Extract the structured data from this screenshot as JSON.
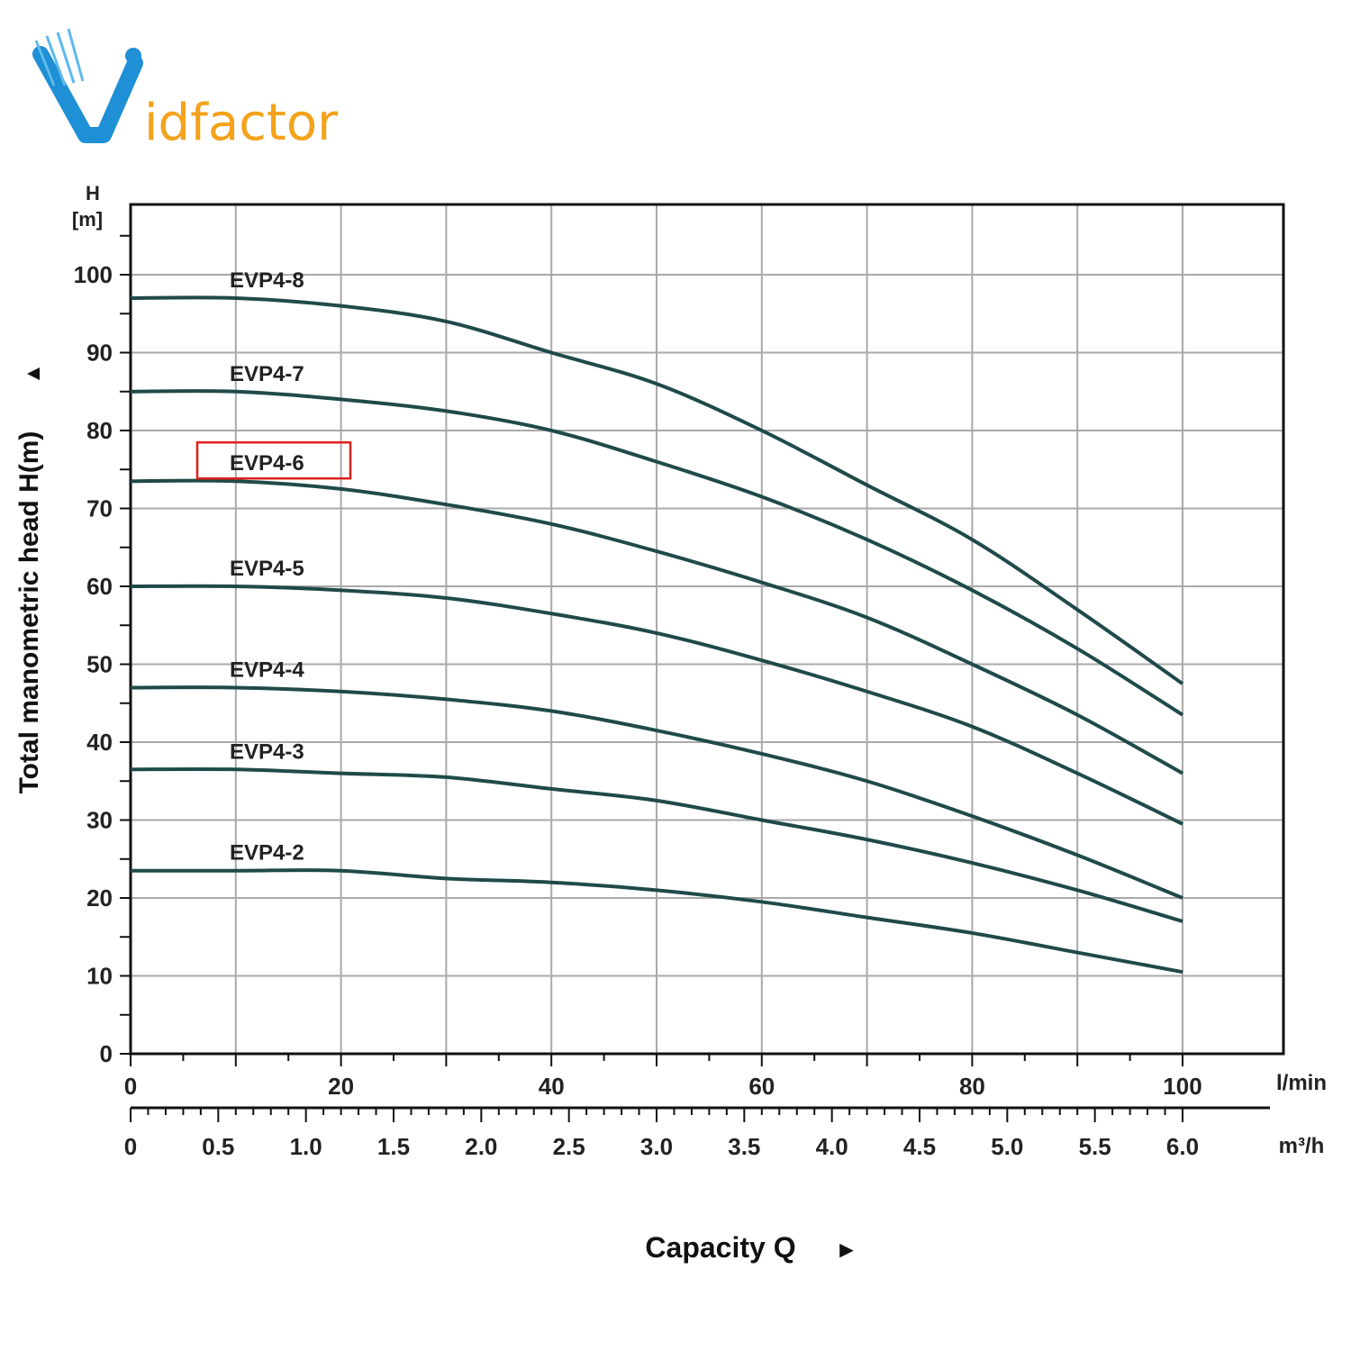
{
  "logo": {
    "initial": "V",
    "rest": "idfactor",
    "colors": {
      "blue": "#1f8fd6",
      "orange": "#f3a21b"
    }
  },
  "chart_data": {
    "type": "line",
    "ylabel": "Total manometric head H(m)",
    "ylabel_arrow": "▲",
    "y_unit_label": [
      "H",
      "[m]"
    ],
    "xlabel": "Capacity Q",
    "xlabel_arrow": "►",
    "x_unit_primary": "l/min",
    "x_unit_secondary": "m³/h",
    "xlim": [
      0,
      100
    ],
    "ylim": [
      0,
      100
    ],
    "grid": true,
    "y_ticks": [
      "0",
      "10",
      "20",
      "30",
      "40",
      "50",
      "60",
      "70",
      "80",
      "90",
      "100"
    ],
    "x_ticks_lmin": [
      "0",
      "20",
      "40",
      "60",
      "80",
      "100"
    ],
    "x_ticks_m3h": [
      "0",
      "0.5",
      "1.0",
      "1.5",
      "2.0",
      "2.5",
      "3.0",
      "3.5",
      "4.0",
      "4.5",
      "5.0",
      "5.5",
      "6.0"
    ],
    "x": [
      0,
      10,
      20,
      30,
      40,
      50,
      60,
      70,
      80,
      90,
      100
    ],
    "series": [
      {
        "name": "EVP4-8",
        "values": [
          97,
          97,
          96,
          94,
          90,
          86,
          80,
          73,
          66,
          57,
          47.5
        ]
      },
      {
        "name": "EVP4-7",
        "values": [
          85,
          85,
          84,
          82.5,
          80,
          76,
          71.5,
          66,
          59.5,
          52,
          43.5
        ]
      },
      {
        "name": "EVP4-6",
        "values": [
          73.5,
          73.5,
          72.5,
          70.5,
          68,
          64.5,
          60.5,
          56,
          50,
          43.5,
          36
        ]
      },
      {
        "name": "EVP4-5",
        "values": [
          60,
          60,
          59.5,
          58.5,
          56.5,
          54,
          50.5,
          46.5,
          42,
          36,
          29.5
        ]
      },
      {
        "name": "EVP4-4",
        "values": [
          47,
          47,
          46.5,
          45.5,
          44,
          41.5,
          38.5,
          35,
          30.5,
          25.5,
          20
        ]
      },
      {
        "name": "EVP4-3",
        "values": [
          36.5,
          36.5,
          36,
          35.5,
          34,
          32.5,
          30,
          27.5,
          24.5,
          21,
          17
        ]
      },
      {
        "name": "EVP4-2",
        "values": [
          23.5,
          23.5,
          23.5,
          22.5,
          22,
          21,
          19.5,
          17.5,
          15.5,
          13,
          10.5
        ]
      }
    ],
    "highlighted_series": "EVP4-6",
    "colors": {
      "curve": "#1f4a4a",
      "grid": "#a9a9a9",
      "axis": "#111111",
      "highlight": "#e0201b"
    }
  }
}
